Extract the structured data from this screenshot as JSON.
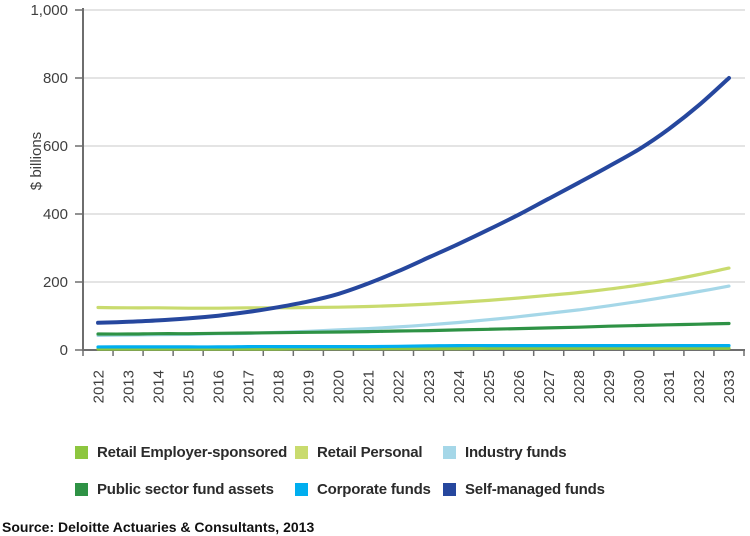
{
  "chart_data": {
    "type": "line",
    "title": "",
    "xlabel": "",
    "ylabel": "$ billions",
    "ylim": [
      0,
      1000
    ],
    "grid": "horizontal",
    "legend_position": "bottom",
    "yticks": [
      {
        "value": 0,
        "label": "0"
      },
      {
        "value": 200,
        "label": "200"
      },
      {
        "value": 400,
        "label": "400"
      },
      {
        "value": 600,
        "label": "600"
      },
      {
        "value": 800,
        "label": "800"
      },
      {
        "value": 1000,
        "label": "1,000"
      }
    ],
    "x": [
      "2012",
      "2013",
      "2014",
      "2015",
      "2016",
      "2017",
      "2018",
      "2019",
      "2020",
      "2021",
      "2022",
      "2023",
      "2024",
      "2025",
      "2026",
      "2027",
      "2028",
      "2029",
      "2030",
      "2031",
      "2032",
      "2033"
    ],
    "series": [
      {
        "name": "Retail Employer-sponsored",
        "color": "#8DC63F",
        "values": [
          3,
          3,
          3,
          3,
          3,
          3,
          3,
          4,
          4,
          4,
          4,
          4,
          4,
          5,
          5,
          5,
          5,
          5,
          5,
          5,
          5,
          5
        ]
      },
      {
        "name": "Retail Personal",
        "color": "#C9DB6E",
        "values": [
          125,
          124,
          124,
          123,
          123,
          124,
          124,
          125,
          126,
          128,
          131,
          135,
          140,
          146,
          153,
          161,
          169,
          179,
          191,
          205,
          222,
          241
        ]
      },
      {
        "name": "Industry funds",
        "color": "#A5D7E8",
        "values": [
          43,
          44,
          45,
          46,
          48,
          49,
          52,
          55,
          59,
          63,
          68,
          74,
          81,
          89,
          98,
          108,
          118,
          130,
          143,
          157,
          172,
          188
        ]
      },
      {
        "name": "Public sector fund assets",
        "color": "#2E9245",
        "values": [
          47,
          47,
          48,
          48,
          49,
          50,
          51,
          52,
          53,
          54,
          56,
          57,
          59,
          61,
          63,
          65,
          67,
          70,
          72,
          74,
          76,
          78
        ]
      },
      {
        "name": "Corporate funds",
        "color": "#00AEEF",
        "values": [
          9,
          9,
          9,
          9,
          9,
          10,
          10,
          10,
          10,
          10,
          11,
          12,
          13,
          13,
          13,
          13,
          13,
          13,
          13,
          13,
          13,
          13
        ]
      },
      {
        "name": "Self-managed funds",
        "color": "#26479E",
        "values": [
          80,
          83,
          87,
          93,
          101,
          112,
          126,
          143,
          165,
          196,
          232,
          272,
          312,
          354,
          398,
          445,
          492,
          540,
          590,
          650,
          720,
          800
        ]
      }
    ]
  },
  "colors": {
    "gridline": "#C9C9C9",
    "axis": "#6E6E6E",
    "tick_text": "#3F3F3F"
  },
  "source": {
    "text": "Source: Deloitte Actuaries & Consultants, 2013"
  }
}
